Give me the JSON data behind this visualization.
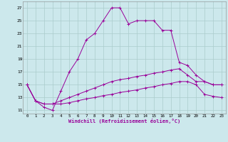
{
  "xlabel": "Windchill (Refroidissement éolien,°C)",
  "background_color": "#cce8ec",
  "grid_color": "#aacccc",
  "line_color": "#990099",
  "xlim": [
    -0.5,
    23.5
  ],
  "ylim": [
    10.5,
    28
  ],
  "yticks": [
    11,
    13,
    15,
    17,
    19,
    21,
    23,
    25,
    27
  ],
  "xticks": [
    0,
    1,
    2,
    3,
    4,
    5,
    6,
    7,
    8,
    9,
    10,
    11,
    12,
    13,
    14,
    15,
    16,
    17,
    18,
    19,
    20,
    21,
    22,
    23
  ],
  "series": [
    {
      "x": [
        0,
        1,
        2,
        3,
        4,
        5,
        6,
        7,
        8,
        9,
        10,
        11,
        12,
        13,
        14,
        15,
        16,
        17,
        18,
        19,
        20,
        21,
        22,
        23
      ],
      "y": [
        15,
        12.5,
        11.5,
        11,
        14,
        17,
        19,
        22,
        23,
        25,
        27,
        27,
        24.5,
        25,
        25,
        25,
        23.5,
        23.5,
        18.5,
        18,
        16.5,
        15.5,
        15,
        15
      ]
    },
    {
      "x": [
        0,
        1,
        2,
        3,
        4,
        5,
        6,
        7,
        8,
        9,
        10,
        11,
        12,
        13,
        14,
        15,
        16,
        17,
        18,
        19,
        20,
        21,
        22,
        23
      ],
      "y": [
        15,
        12.5,
        12,
        12,
        12.5,
        13,
        13.5,
        14,
        14.5,
        15,
        15.5,
        15.8,
        16,
        16.3,
        16.5,
        16.8,
        17,
        17.3,
        17.5,
        16.5,
        15.5,
        15.5,
        15,
        15
      ]
    },
    {
      "x": [
        0,
        1,
        2,
        3,
        4,
        5,
        6,
        7,
        8,
        9,
        10,
        11,
        12,
        13,
        14,
        15,
        16,
        17,
        18,
        19,
        20,
        21,
        22,
        23
      ],
      "y": [
        15,
        12.5,
        12,
        12,
        12,
        12.2,
        12.5,
        12.8,
        13,
        13.3,
        13.5,
        13.8,
        14,
        14.2,
        14.5,
        14.7,
        15,
        15.2,
        15.5,
        15.5,
        15,
        13.5,
        13.2,
        13
      ]
    }
  ]
}
